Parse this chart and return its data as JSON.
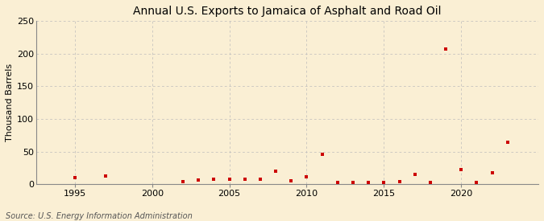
{
  "title": "Annual U.S. Exports to Jamaica of Asphalt and Road Oil",
  "ylabel": "Thousand Barrels",
  "source": "Source: U.S. Energy Information Administration",
  "background_color": "#faefd4",
  "marker_color": "#cc0000",
  "years": [
    1995,
    1997,
    2002,
    2003,
    2004,
    2005,
    2006,
    2007,
    2008,
    2009,
    2010,
    2011,
    2012,
    2013,
    2014,
    2015,
    2016,
    2017,
    2018,
    2019,
    2020,
    2021,
    2022,
    2023
  ],
  "values": [
    10,
    12,
    4,
    6,
    8,
    8,
    7,
    7,
    20,
    5,
    11,
    46,
    3,
    2,
    3,
    3,
    4,
    15,
    3,
    207,
    22,
    3,
    18,
    64
  ],
  "xlim": [
    1992.5,
    2025
  ],
  "ylim": [
    0,
    250
  ],
  "yticks": [
    0,
    50,
    100,
    150,
    200,
    250
  ],
  "xticks": [
    1995,
    2000,
    2005,
    2010,
    2015,
    2020
  ],
  "vgrid_lines": [
    1995,
    2000,
    2005,
    2010,
    2015,
    2020
  ],
  "title_fontsize": 10,
  "label_fontsize": 8,
  "tick_fontsize": 8,
  "source_fontsize": 7
}
